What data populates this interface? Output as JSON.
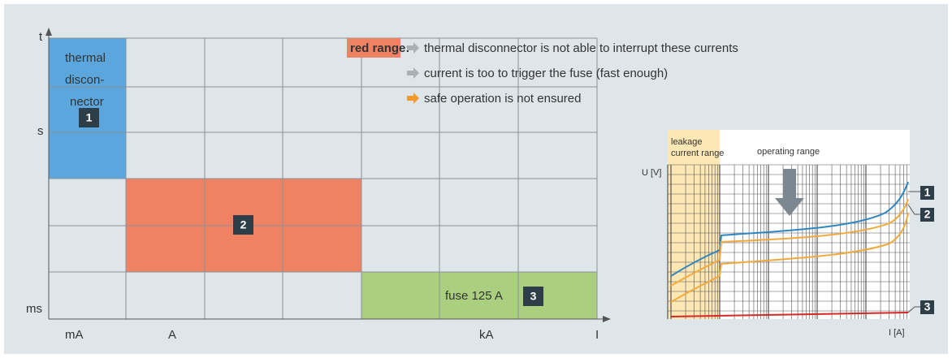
{
  "diagram": {
    "axis": {
      "y_label": "t",
      "y_ticks": [
        "s",
        "ms"
      ],
      "x_label": "I",
      "x_ticks": [
        "mA",
        "A",
        "kA"
      ]
    },
    "regions": [
      {
        "lines": [
          "thermal",
          "discon-",
          "nector"
        ],
        "badge": "1"
      },
      {
        "badge": "2"
      },
      {
        "lines": [
          "fuse 125 A"
        ],
        "badge": "3"
      }
    ],
    "legend": {
      "title": "red range:",
      "items": [
        "thermal disconnector is not able to interrupt these currents",
        "current is too to trigger the fuse (fast enough)",
        "safe operation is not ensured"
      ]
    },
    "inset": {
      "band_lines": [
        "leakage",
        "current range"
      ],
      "operating": "operating range",
      "y_label": "U [V]",
      "x_label": "I [A]",
      "curve_badges": [
        "1",
        "2",
        "3"
      ]
    }
  }
}
